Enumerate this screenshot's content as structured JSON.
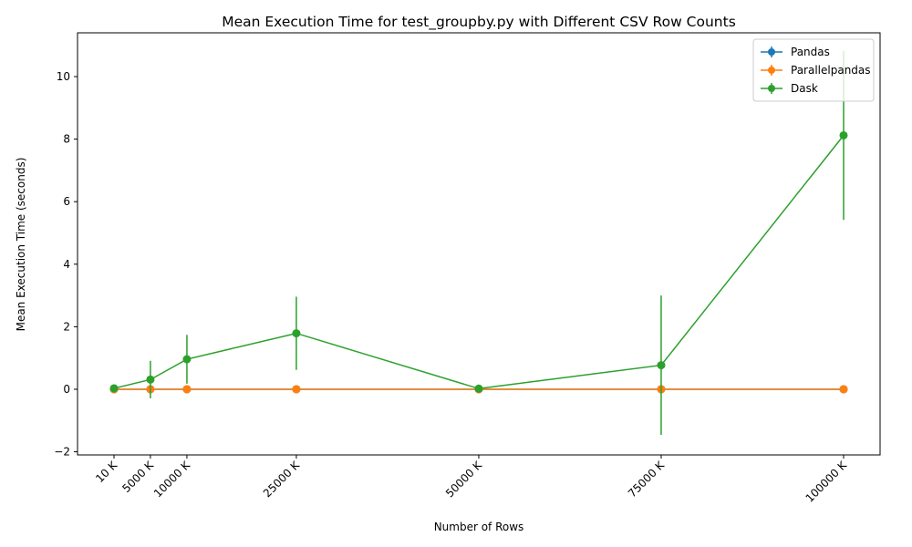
{
  "chart_data": {
    "type": "line",
    "title": "Mean Execution Time for test_groupby.py with Different CSV Row Counts",
    "xlabel": "Number of Rows",
    "ylabel": "Mean Execution Time (seconds)",
    "x": [
      10,
      5000,
      10000,
      25000,
      50000,
      75000,
      100000
    ],
    "x_tick_labels": [
      "10 K",
      "5000 K",
      "10000 K",
      "25000 K",
      "50000 K",
      "75000 K",
      "100000 K"
    ],
    "xlim": [
      -4990,
      105000
    ],
    "ylim": [
      -2.1,
      11.4
    ],
    "y_ticks": [
      -2,
      0,
      2,
      4,
      6,
      8,
      10
    ],
    "y_tick_labels": [
      "−2",
      "0",
      "2",
      "4",
      "6",
      "8",
      "10"
    ],
    "grid": false,
    "legend_position": "top-right",
    "series": [
      {
        "name": "Pandas",
        "color": "#1f77b4",
        "values": [
          0.0,
          0.0,
          0.0,
          0.0,
          0.0,
          0.0,
          0.0
        ],
        "errors": [
          0.0,
          0.0,
          0.0,
          0.0,
          0.0,
          0.0,
          0.0
        ]
      },
      {
        "name": "Parallelpandas",
        "color": "#ff7f0e",
        "values": [
          0.0,
          0.0,
          0.0,
          0.0,
          0.0,
          0.0,
          0.0
        ],
        "errors": [
          0.0,
          0.0,
          0.0,
          0.0,
          0.0,
          0.0,
          0.0
        ]
      },
      {
        "name": "Dask",
        "color": "#2ca02c",
        "values": [
          0.03,
          0.31,
          0.96,
          1.79,
          0.02,
          0.77,
          8.12
        ],
        "errors": [
          0.0,
          0.6,
          0.78,
          1.17,
          0.0,
          2.23,
          2.7
        ]
      }
    ]
  }
}
